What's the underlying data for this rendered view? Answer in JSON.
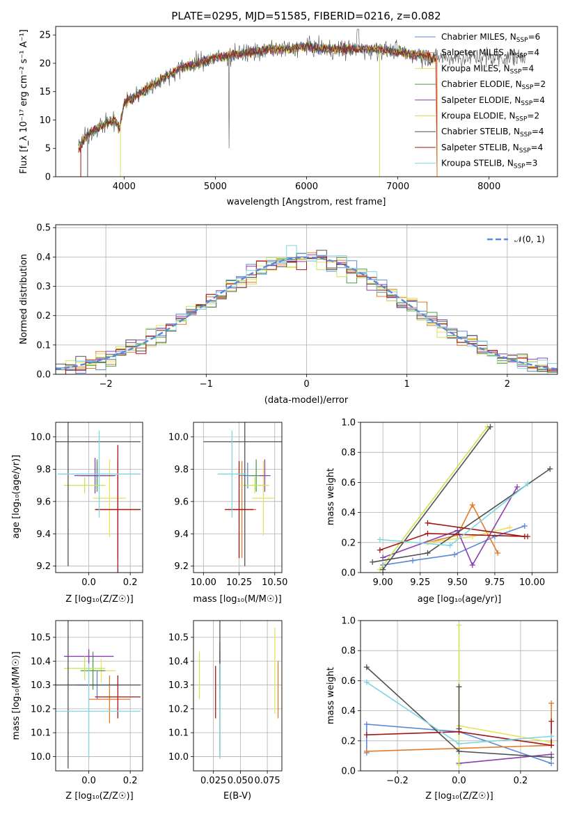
{
  "colors": [
    "#5b87d6",
    "#e07b2a",
    "#ebe15a",
    "#4c9a4c",
    "#8a3fb0",
    "#c8e65a",
    "#505050",
    "#a31515",
    "#7fd6e0"
  ],
  "chart_data": [
    {
      "id": "spectrum",
      "type": "line",
      "title": "PLATE=0295, MJD=51585, FIBERID=0216, z=0.082",
      "xlabel": "wavelength [Angstrom, rest frame]",
      "ylabel": "Flux [f_λ 10⁻¹⁷ erg cm⁻² s⁻¹ A⁻¹]",
      "xlim": [
        3250,
        8750
      ],
      "ylim": [
        0,
        26.5
      ],
      "xticks": [
        "4000",
        "5000",
        "6000",
        "7000",
        "8000"
      ],
      "xtick_values": [
        4000,
        5000,
        6000,
        7000,
        8000
      ],
      "yticks": [
        "0",
        "5",
        "10",
        "15",
        "20",
        "25"
      ],
      "ytick_values": [
        0,
        5,
        10,
        15,
        20,
        25
      ],
      "legend_position": "upper-right",
      "legend": [
        "Chabrier MILES, N_SSP=6",
        "Salpeter MILES, N_SSP=4",
        "Kroupa MILES, N_SSP=4",
        "Chabrier ELODIE, N_SSP=2",
        "Salpeter ELODIE, N_SSP=4",
        "Kroupa ELODIE, N_SSP=2",
        "Chabrier STELIB, N_SSP=4",
        "Salpeter STELIB, N_SSP=4",
        "Kroupa STELIB, N_SSP=3"
      ],
      "continuum": {
        "x": [
          3500,
          3600,
          3700,
          3800,
          3900,
          3950,
          4000,
          4100,
          4200,
          4300,
          4400,
          4500,
          4600,
          4800,
          5000,
          5200,
          5400,
          5600,
          5800,
          6000,
          6200,
          6400,
          6600,
          6800,
          7000,
          7200,
          7400
        ],
        "y": [
          5,
          7.5,
          8.5,
          9.5,
          10,
          8.5,
          13,
          14,
          15,
          16,
          17,
          18,
          19,
          20,
          21,
          21.5,
          22,
          22.5,
          22.5,
          23,
          22.5,
          22.5,
          22.5,
          22.5,
          22,
          21.5,
          21
        ]
      },
      "data_range": [
        3500,
        8400
      ]
    },
    {
      "id": "residuals",
      "type": "histogram",
      "xlabel": "(data-model)/error",
      "ylabel": "Normed distribution",
      "xlim": [
        -2.5,
        2.5
      ],
      "ylim": [
        0,
        0.51
      ],
      "xticks": [
        "−2",
        "−1",
        "0",
        "1",
        "2"
      ],
      "xtick_values": [
        -2,
        -1,
        0,
        1,
        2
      ],
      "yticks": [
        "0.0",
        "0.1",
        "0.2",
        "0.3",
        "0.4",
        "0.5"
      ],
      "ytick_values": [
        0,
        0.1,
        0.2,
        0.3,
        0.4,
        0.5
      ],
      "grid": true,
      "bin_width": 0.1,
      "legend": "𝒩(0, 1)",
      "legend_position": "upper-right"
    },
    {
      "id": "z-age",
      "type": "errorbar",
      "xlabel": "Z [log₁₀(Z/Z☉)]",
      "ylabel": "age  [log₁₀(age/yr)]",
      "xlim": [
        -0.16,
        0.26
      ],
      "ylim": [
        9.16,
        10.09
      ],
      "xticks": [
        "0.0",
        "0.2"
      ],
      "xtick_values": [
        0,
        0.2
      ],
      "yticks": [
        "9.2",
        "9.4",
        "9.6",
        "9.8",
        "10.0"
      ],
      "ytick_values": [
        9.2,
        9.4,
        9.6,
        9.8,
        10.0
      ],
      "grid": true,
      "points": [
        {
          "x": 0.04,
          "y": 9.76,
          "xerr": 0.08,
          "yerr": 0.08,
          "c": 0
        },
        {
          "x": 0.14,
          "y": 9.55,
          "xerr": 0.11,
          "yerr": 0.3,
          "c": 1
        },
        {
          "x": 0.1,
          "y": 9.62,
          "xerr": 0.08,
          "yerr": 0.24,
          "c": 2
        },
        {
          "x": 0.04,
          "y": 9.76,
          "xerr": 0.08,
          "yerr": 0.1,
          "c": 3
        },
        {
          "x": 0.03,
          "y": 9.76,
          "xerr": 0.1,
          "yerr": 0.11,
          "c": 4
        },
        {
          "x": -0.02,
          "y": 9.7,
          "xerr": 0.1,
          "yerr": 0.05,
          "c": 5
        },
        {
          "x": -0.1,
          "y": 9.97,
          "xerr": 0.35,
          "yerr": 0.77,
          "c": 6
        },
        {
          "x": 0.14,
          "y": 9.55,
          "xerr": 0.11,
          "yerr": 0.4,
          "c": 7
        },
        {
          "x": 0.05,
          "y": 9.77,
          "xerr": 0.2,
          "yerr": 0.27,
          "c": 8
        }
      ]
    },
    {
      "id": "mass-age",
      "type": "errorbar",
      "xlabel": "mass [log₁₀(M/M☉)]",
      "ylabel": "",
      "xlim": [
        9.93,
        10.55
      ],
      "ylim": [
        9.16,
        10.09
      ],
      "xticks": [
        "10.00",
        "10.25",
        "10.50"
      ],
      "xtick_values": [
        10,
        10.25,
        10.5
      ],
      "yticks": [
        "9.2",
        "9.4",
        "9.6",
        "9.8",
        "10.0"
      ],
      "ytick_values": [
        9.2,
        9.4,
        9.6,
        9.8,
        10.0
      ],
      "grid": true,
      "points": [
        {
          "x": 10.31,
          "y": 9.76,
          "xerr": 0.06,
          "yerr": 0.08,
          "c": 0
        },
        {
          "x": 10.27,
          "y": 9.55,
          "xerr": 0.1,
          "yerr": 0.3,
          "c": 1
        },
        {
          "x": 10.42,
          "y": 9.62,
          "xerr": 0.08,
          "yerr": 0.23,
          "c": 2
        },
        {
          "x": 10.37,
          "y": 9.76,
          "xerr": 0.05,
          "yerr": 0.1,
          "c": 3
        },
        {
          "x": 10.43,
          "y": 9.76,
          "xerr": 0.04,
          "yerr": 0.1,
          "c": 4
        },
        {
          "x": 10.36,
          "y": 9.7,
          "xerr": 0.1,
          "yerr": 0.05,
          "c": 5
        },
        {
          "x": 10.29,
          "y": 9.97,
          "xerr": 0.29,
          "yerr": 0.77,
          "c": 6
        },
        {
          "x": 10.25,
          "y": 9.55,
          "xerr": 0.1,
          "yerr": 0.3,
          "c": 7
        },
        {
          "x": 10.2,
          "y": 9.77,
          "xerr": 0.1,
          "yerr": 0.27,
          "c": 8
        }
      ]
    },
    {
      "id": "age-weight",
      "type": "line",
      "xlabel": "age  [log₁₀(age/yr)]",
      "ylabel": "mass weight",
      "xlim": [
        8.85,
        10.17
      ],
      "ylim": [
        0,
        1.0
      ],
      "xticks": [
        "9.00",
        "9.25",
        "9.50",
        "9.75",
        "10.00"
      ],
      "xtick_values": [
        9,
        9.25,
        9.5,
        9.75,
        10
      ],
      "yticks": [
        "0.0",
        "0.2",
        "0.4",
        "0.6",
        "0.8",
        "1.0"
      ],
      "ytick_values": [
        0,
        0.2,
        0.4,
        0.6,
        0.8,
        1.0
      ],
      "grid": true,
      "series": [
        {
          "c": 0,
          "x": [
            9.0,
            9.2,
            9.48,
            9.75,
            9.95
          ],
          "y": [
            0.05,
            0.08,
            0.12,
            0.24,
            0.31
          ]
        },
        {
          "c": 1,
          "x": [
            9.3,
            9.5,
            9.6,
            9.77
          ],
          "y": [
            0.2,
            0.25,
            0.45,
            0.13
          ]
        },
        {
          "c": 2,
          "x": [
            9.3,
            9.6,
            9.85
          ],
          "y": [
            0.2,
            0.24,
            0.3
          ]
        },
        {
          "c": 4,
          "x": [
            9.0,
            9.5,
            9.6,
            9.9
          ],
          "y": [
            0.1,
            0.28,
            0.05,
            0.57
          ]
        },
        {
          "c": 5,
          "x": [
            8.98,
            9.7
          ],
          "y": [
            0.02,
            0.97
          ]
        },
        {
          "c": 6,
          "x": [
            8.93,
            9.3,
            10.12
          ],
          "y": [
            0.07,
            0.13,
            0.69
          ]
        },
        {
          "c": 6,
          "x": [
            9.0,
            9.72
          ],
          "y": [
            0.02,
            0.97
          ]
        },
        {
          "c": 7,
          "x": [
            8.98,
            9.3,
            9.97
          ],
          "y": [
            0.15,
            0.26,
            0.24
          ]
        },
        {
          "c": 7,
          "x": [
            9.3,
            9.95
          ],
          "y": [
            0.33,
            0.24
          ]
        },
        {
          "c": 8,
          "x": [
            8.98,
            9.45,
            9.97
          ],
          "y": [
            0.22,
            0.18,
            0.59
          ]
        }
      ]
    },
    {
      "id": "z-mass",
      "type": "errorbar",
      "xlabel": "Z [log₁₀(Z/Z☉)]",
      "ylabel": "mass [log₁₀(M/M☉)]",
      "xlim": [
        -0.16,
        0.26
      ],
      "ylim": [
        9.94,
        10.57
      ],
      "xticks": [
        "0.0",
        "0.2"
      ],
      "xtick_values": [
        0,
        0.2
      ],
      "yticks": [
        "10.0",
        "10.1",
        "10.2",
        "10.3",
        "10.4",
        "10.5"
      ],
      "ytick_values": [
        10,
        10.1,
        10.2,
        10.3,
        10.4,
        10.5
      ],
      "grid": true,
      "points": [
        {
          "x": 0.04,
          "y": 10.3,
          "xerr": 0.1,
          "yerr": 0.06,
          "c": 0
        },
        {
          "x": 0.1,
          "y": 10.24,
          "xerr": 0.1,
          "yerr": 0.1,
          "c": 1
        },
        {
          "x": 0.06,
          "y": 10.36,
          "xerr": 0.07,
          "yerr": 0.05,
          "c": 2
        },
        {
          "x": 0.02,
          "y": 10.36,
          "xerr": 0.06,
          "yerr": 0.08,
          "c": 3
        },
        {
          "x": 0.0,
          "y": 10.42,
          "xerr": 0.12,
          "yerr": 0.03,
          "c": 4
        },
        {
          "x": -0.02,
          "y": 10.37,
          "xerr": 0.1,
          "yerr": 0.05,
          "c": 5
        },
        {
          "x": -0.1,
          "y": 10.3,
          "xerr": 0.35,
          "yerr": 0.35,
          "c": 6
        },
        {
          "x": 0.14,
          "y": 10.25,
          "xerr": 0.11,
          "yerr": 0.09,
          "c": 7
        },
        {
          "x": 0.0,
          "y": 10.19,
          "xerr": 0.25,
          "yerr": 0.2,
          "c": 8
        }
      ]
    },
    {
      "id": "ebv-mass",
      "type": "errorbar",
      "xlabel": "E(B-V)",
      "ylabel": "",
      "xlim": [
        0.0065,
        0.0885
      ],
      "ylim": [
        9.94,
        10.57
      ],
      "xticks": [
        "0.025",
        "0.050",
        "0.075"
      ],
      "xtick_values": [
        0.025,
        0.05,
        0.075
      ],
      "yticks": [
        "10.0",
        "10.1",
        "10.2",
        "10.3",
        "10.4",
        "10.5"
      ],
      "ytick_values": [
        10,
        10.1,
        10.2,
        10.3,
        10.4,
        10.5
      ],
      "grid": true,
      "points": [
        {
          "x": 0.031,
          "y": 10.3,
          "yerr": 0.06,
          "c": 0
        },
        {
          "x": 0.085,
          "y": 10.28,
          "yerr": 0.12,
          "c": 1
        },
        {
          "x": 0.082,
          "y": 10.36,
          "yerr": 0.18,
          "c": 2
        },
        {
          "x": 0.031,
          "y": 10.36,
          "yerr": 0.08,
          "c": 3
        },
        {
          "x": 0.031,
          "y": 10.42,
          "yerr": 0.06,
          "c": 4
        },
        {
          "x": 0.012,
          "y": 10.34,
          "yerr": 0.1,
          "c": 5
        },
        {
          "x": 0.031,
          "y": 10.3,
          "yerr": 0.3,
          "c": 6
        },
        {
          "x": 0.027,
          "y": 10.27,
          "yerr": 0.11,
          "c": 7
        },
        {
          "x": 0.031,
          "y": 10.19,
          "yerr": 0.2,
          "c": 8
        }
      ]
    },
    {
      "id": "z-weight",
      "type": "line",
      "xlabel": "Z [log₁₀(Z/Z☉)]",
      "ylabel": "mass weight",
      "xlim": [
        -0.32,
        0.32
      ],
      "ylim": [
        0,
        1.0
      ],
      "xticks": [
        "−0.2",
        "0.0",
        "0.2"
      ],
      "xtick_values": [
        -0.2,
        0,
        0.2
      ],
      "yticks": [
        "0.0",
        "0.2",
        "0.4",
        "0.6",
        "0.8",
        "1.0"
      ],
      "ytick_values": [
        0,
        0.2,
        0.4,
        0.6,
        0.8,
        1.0
      ],
      "grid": true,
      "series": [
        {
          "c": 0,
          "x": [
            -0.3,
            -0.3,
            0.0,
            0.3
          ],
          "y": [
            0.12,
            0.31,
            0.26,
            0.05
          ]
        },
        {
          "c": 1,
          "x": [
            -0.3,
            0.3,
            0.3
          ],
          "y": [
            0.13,
            0.17,
            0.45
          ]
        },
        {
          "c": 2,
          "x": [
            0.0,
            0.3
          ],
          "y": [
            0.3,
            0.19
          ]
        },
        {
          "c": 4,
          "x": [
            0.0,
            0.3
          ],
          "y": [
            0.05,
            0.11
          ]
        },
        {
          "c": 5,
          "x": [
            0.0,
            0.0
          ],
          "y": [
            0.04,
            0.97
          ]
        },
        {
          "c": 6,
          "x": [
            -0.3,
            0.0,
            0.3
          ],
          "y": [
            0.69,
            0.13,
            0.09
          ]
        },
        {
          "c": 6,
          "x": [
            0.0,
            0.0
          ],
          "y": [
            0.28,
            0.56
          ]
        },
        {
          "c": 7,
          "x": [
            -0.3,
            0.0,
            0.3,
            0.3
          ],
          "y": [
            0.24,
            0.26,
            0.17,
            0.33
          ]
        },
        {
          "c": 8,
          "x": [
            -0.3,
            0.0,
            0.3
          ],
          "y": [
            0.59,
            0.18,
            0.23
          ]
        }
      ]
    }
  ]
}
